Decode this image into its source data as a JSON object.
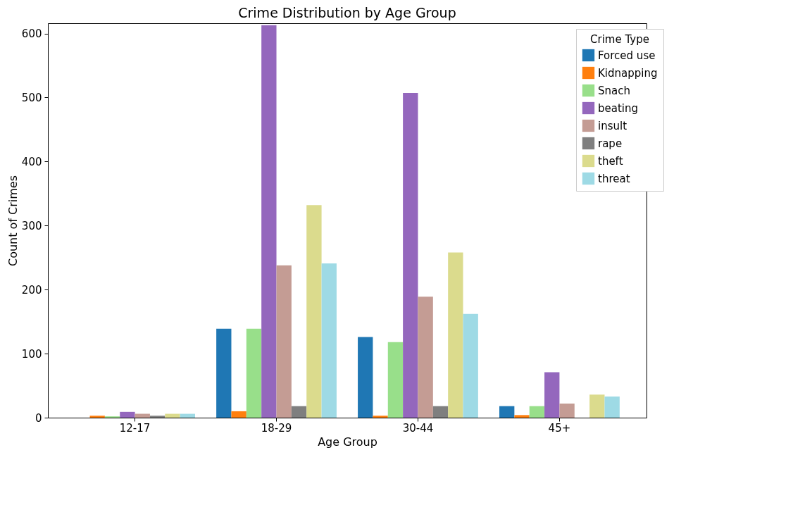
{
  "chart_data": {
    "type": "bar",
    "title": "Crime Distribution by Age Group",
    "xlabel": "Age Group",
    "ylabel": "Count of Crimes",
    "legend_title": "Crime Type",
    "categories": [
      "12-17",
      "18-29",
      "30-44",
      "45+"
    ],
    "series": [
      {
        "name": "Forced use",
        "color": "#1f77b4",
        "values": [
          0,
          139,
          126,
          18
        ]
      },
      {
        "name": "Kidnapping",
        "color": "#ff7f0e",
        "values": [
          3,
          10,
          3,
          4
        ]
      },
      {
        "name": "Snach",
        "color": "#98df8a",
        "values": [
          2,
          139,
          118,
          18
        ]
      },
      {
        "name": "beating",
        "color": "#9467bd",
        "values": [
          9,
          613,
          507,
          71
        ]
      },
      {
        "name": "insult",
        "color": "#c49c94",
        "values": [
          6,
          238,
          189,
          22
        ]
      },
      {
        "name": "rape",
        "color": "#7f7f7f",
        "values": [
          3,
          18,
          18,
          0
        ]
      },
      {
        "name": "theft",
        "color": "#dbdb8d",
        "values": [
          6,
          332,
          258,
          36
        ]
      },
      {
        "name": "threat",
        "color": "#9edae5",
        "values": [
          6,
          241,
          162,
          33
        ]
      }
    ],
    "ylim": [
      0,
      616
    ],
    "yticks": [
      0,
      100,
      200,
      300,
      400,
      500,
      600
    ],
    "grid": false,
    "legend": "top right"
  }
}
